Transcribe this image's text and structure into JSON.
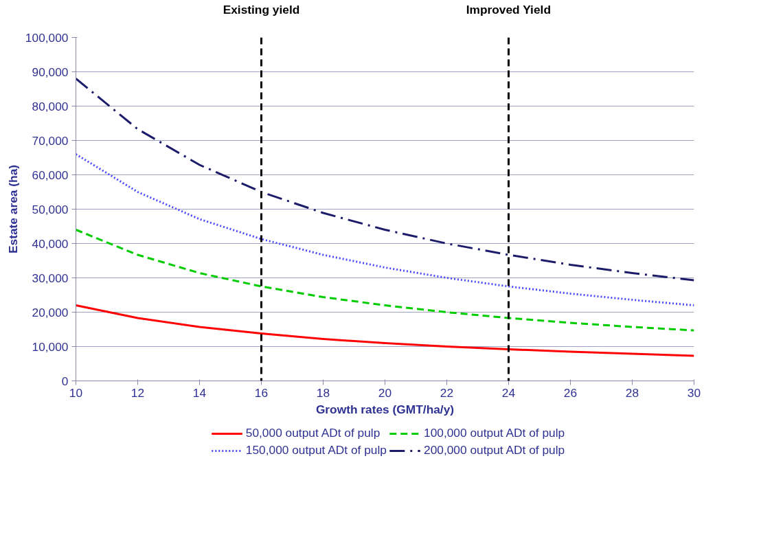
{
  "chart_data": {
    "type": "line",
    "xlabel": "Growth rates (GMT/ha/y)",
    "ylabel": "Estate area (ha)",
    "x": [
      10,
      12,
      14,
      16,
      18,
      20,
      22,
      24,
      26,
      28,
      30
    ],
    "series": [
      {
        "name": "50,000 output ADt of pulp",
        "color": "#ff0000",
        "line_style": "solid",
        "values": [
          22000,
          18300,
          15700,
          13800,
          12200,
          11000,
          10000,
          9200,
          8500,
          7900,
          7300
        ]
      },
      {
        "name": "100,000 output ADt of pulp",
        "color": "#00cc00",
        "line_style": "dashed",
        "values": [
          44000,
          36700,
          31400,
          27500,
          24400,
          22000,
          20000,
          18300,
          16900,
          15700,
          14700
        ]
      },
      {
        "name": "150,000 output ADt of pulp",
        "color": "#4a4aff",
        "line_style": "dotted",
        "values": [
          66000,
          55000,
          47100,
          41300,
          36700,
          33000,
          30000,
          27500,
          25400,
          23600,
          22000
        ]
      },
      {
        "name": "200,000 output ADt of pulp",
        "color": "#1c1c6b",
        "line_style": "dashdot",
        "values": [
          88000,
          73300,
          62900,
          55000,
          48900,
          44000,
          40000,
          36700,
          33800,
          31400,
          29300
        ]
      }
    ],
    "xlim": [
      10,
      30
    ],
    "xticks": [
      10,
      12,
      14,
      16,
      18,
      20,
      22,
      24,
      26,
      28,
      30
    ],
    "ylim": [
      0,
      100000
    ],
    "yticks": [
      {
        "value": 0,
        "label": "0"
      },
      {
        "value": 10000,
        "label": "10,000"
      },
      {
        "value": 20000,
        "label": "20,000"
      },
      {
        "value": 30000,
        "label": "30,000"
      },
      {
        "value": 40000,
        "label": "40,000"
      },
      {
        "value": 50000,
        "label": "50,000"
      },
      {
        "value": 60000,
        "label": "60,000"
      },
      {
        "value": 70000,
        "label": "70,000"
      },
      {
        "value": 80000,
        "label": "80,000"
      },
      {
        "value": 90000,
        "label": "90,000"
      },
      {
        "value": 100000,
        "label": "100,000"
      }
    ],
    "ref_lines": [
      {
        "axis": "x",
        "value": 16,
        "label": "Existing yield",
        "color": "#000000",
        "line_style": "dashed"
      },
      {
        "axis": "x",
        "value": 24,
        "label": "Improved Yield",
        "color": "#000000",
        "line_style": "dashed"
      }
    ],
    "grid": "y",
    "legend": "bottom",
    "marker": "none"
  }
}
